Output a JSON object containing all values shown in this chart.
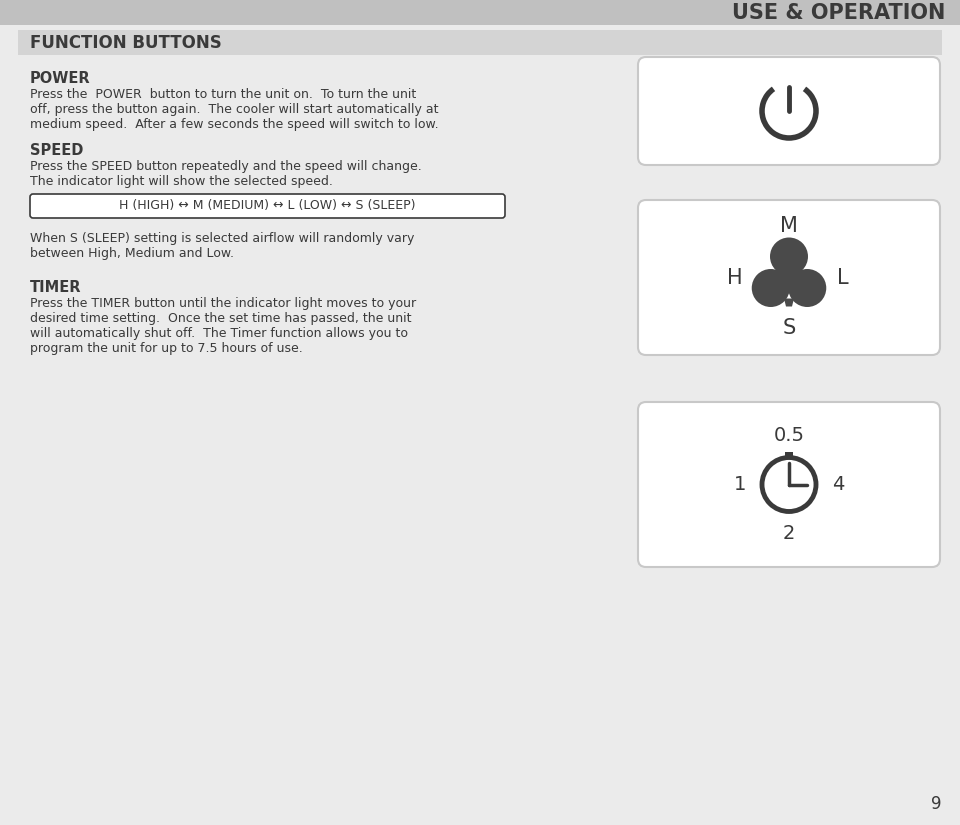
{
  "bg_color": "#ebebeb",
  "white": "#ffffff",
  "dark_gray": "#3a3a3a",
  "icon_gray": "#4a4a4a",
  "light_gray": "#c8c8c8",
  "header_bg": "#c0c0c0",
  "section_bar_bg": "#d4d4d4",
  "title_text": "USE & OPERATION",
  "section_title": "FUNCTION BUTTONS",
  "power_title": "POWER",
  "power_line1": "Press the  POWER  button to turn the unit on.  To turn the unit",
  "power_line2": "off, press the button again.  The cooler will start automatically at",
  "power_line3": "medium speed.  After a few seconds the speed will switch to low.",
  "speed_title": "SPEED",
  "speed_line1": "Press the SPEED button repeatedly and the speed will change.",
  "speed_line2": "The indicator light will show the selected speed.",
  "speed_arrow_text": "H (HIGH) ↔ M (MEDIUM) ↔ L (LOW) ↔ S (SLEEP)",
  "sleep_line1": "When S (SLEEP) setting is selected airflow will randomly vary",
  "sleep_line2": "between High, Medium and Low.",
  "timer_title": "TIMER",
  "timer_line1": "Press the TIMER button until the indicator light moves to your",
  "timer_line2": "desired time setting.  Once the set time has passed, the unit",
  "timer_line3": "will automatically shut off.  The Timer function allows you to",
  "timer_line4": "program the unit for up to 7.5 hours of use.",
  "page_number": "9"
}
